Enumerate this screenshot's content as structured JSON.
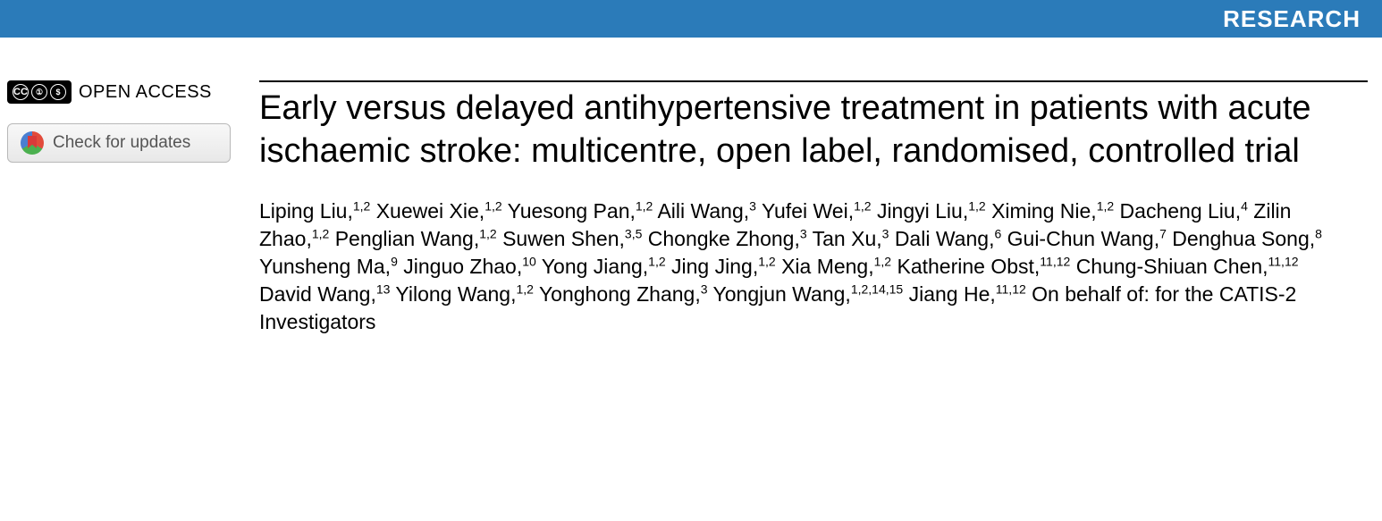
{
  "banner": {
    "label": "RESEARCH",
    "background_color": "#2b7bb9",
    "text_color": "#ffffff"
  },
  "sidebar": {
    "open_access_label": "OPEN ACCESS",
    "cc_parts": [
      "CC",
      "①",
      "$"
    ],
    "updates_label": "Check for updates"
  },
  "article": {
    "title": "Early versus delayed antihypertensive treatment in patients with acute ischaemic stroke: multicentre, open label, randomised, controlled trial",
    "authors": [
      {
        "name": "Liping Liu",
        "aff": "1,2"
      },
      {
        "name": "Xuewei Xie",
        "aff": "1,2"
      },
      {
        "name": "Yuesong Pan",
        "aff": "1,2"
      },
      {
        "name": "Aili Wang",
        "aff": "3"
      },
      {
        "name": "Yufei Wei",
        "aff": "1,2"
      },
      {
        "name": "Jingyi Liu",
        "aff": "1,2"
      },
      {
        "name": "Ximing Nie",
        "aff": "1,2"
      },
      {
        "name": "Dacheng Liu",
        "aff": "4"
      },
      {
        "name": "Zilin Zhao",
        "aff": "1,2"
      },
      {
        "name": "Penglian Wang",
        "aff": "1,2"
      },
      {
        "name": "Suwen Shen",
        "aff": "3,5"
      },
      {
        "name": "Chongke Zhong",
        "aff": "3"
      },
      {
        "name": "Tan Xu",
        "aff": "3"
      },
      {
        "name": "Dali Wang",
        "aff": "6"
      },
      {
        "name": "Gui-Chun Wang",
        "aff": "7"
      },
      {
        "name": "Denghua Song",
        "aff": "8"
      },
      {
        "name": "Yunsheng Ma",
        "aff": "9"
      },
      {
        "name": "Jinguo Zhao",
        "aff": "10"
      },
      {
        "name": "Yong Jiang",
        "aff": "1,2"
      },
      {
        "name": "Jing Jing",
        "aff": "1,2"
      },
      {
        "name": "Xia Meng",
        "aff": "1,2"
      },
      {
        "name": "Katherine Obst",
        "aff": "11,12"
      },
      {
        "name": "Chung-Shiuan Chen",
        "aff": "11,12"
      },
      {
        "name": "David Wang",
        "aff": "13"
      },
      {
        "name": "Yilong Wang",
        "aff": "1,2"
      },
      {
        "name": "Yonghong Zhang",
        "aff": "3"
      },
      {
        "name": "Yongjun Wang",
        "aff": "1,2,14,15"
      },
      {
        "name": "Jiang He",
        "aff": "11,12"
      }
    ],
    "on_behalf": "On behalf of: for the CATIS-2 Investigators"
  },
  "style": {
    "title_fontsize": 38,
    "title_color": "#000000",
    "author_fontsize": 23,
    "author_color": "#000000",
    "rule_color": "#000000",
    "body_font": "Arial, Helvetica, sans-serif"
  }
}
